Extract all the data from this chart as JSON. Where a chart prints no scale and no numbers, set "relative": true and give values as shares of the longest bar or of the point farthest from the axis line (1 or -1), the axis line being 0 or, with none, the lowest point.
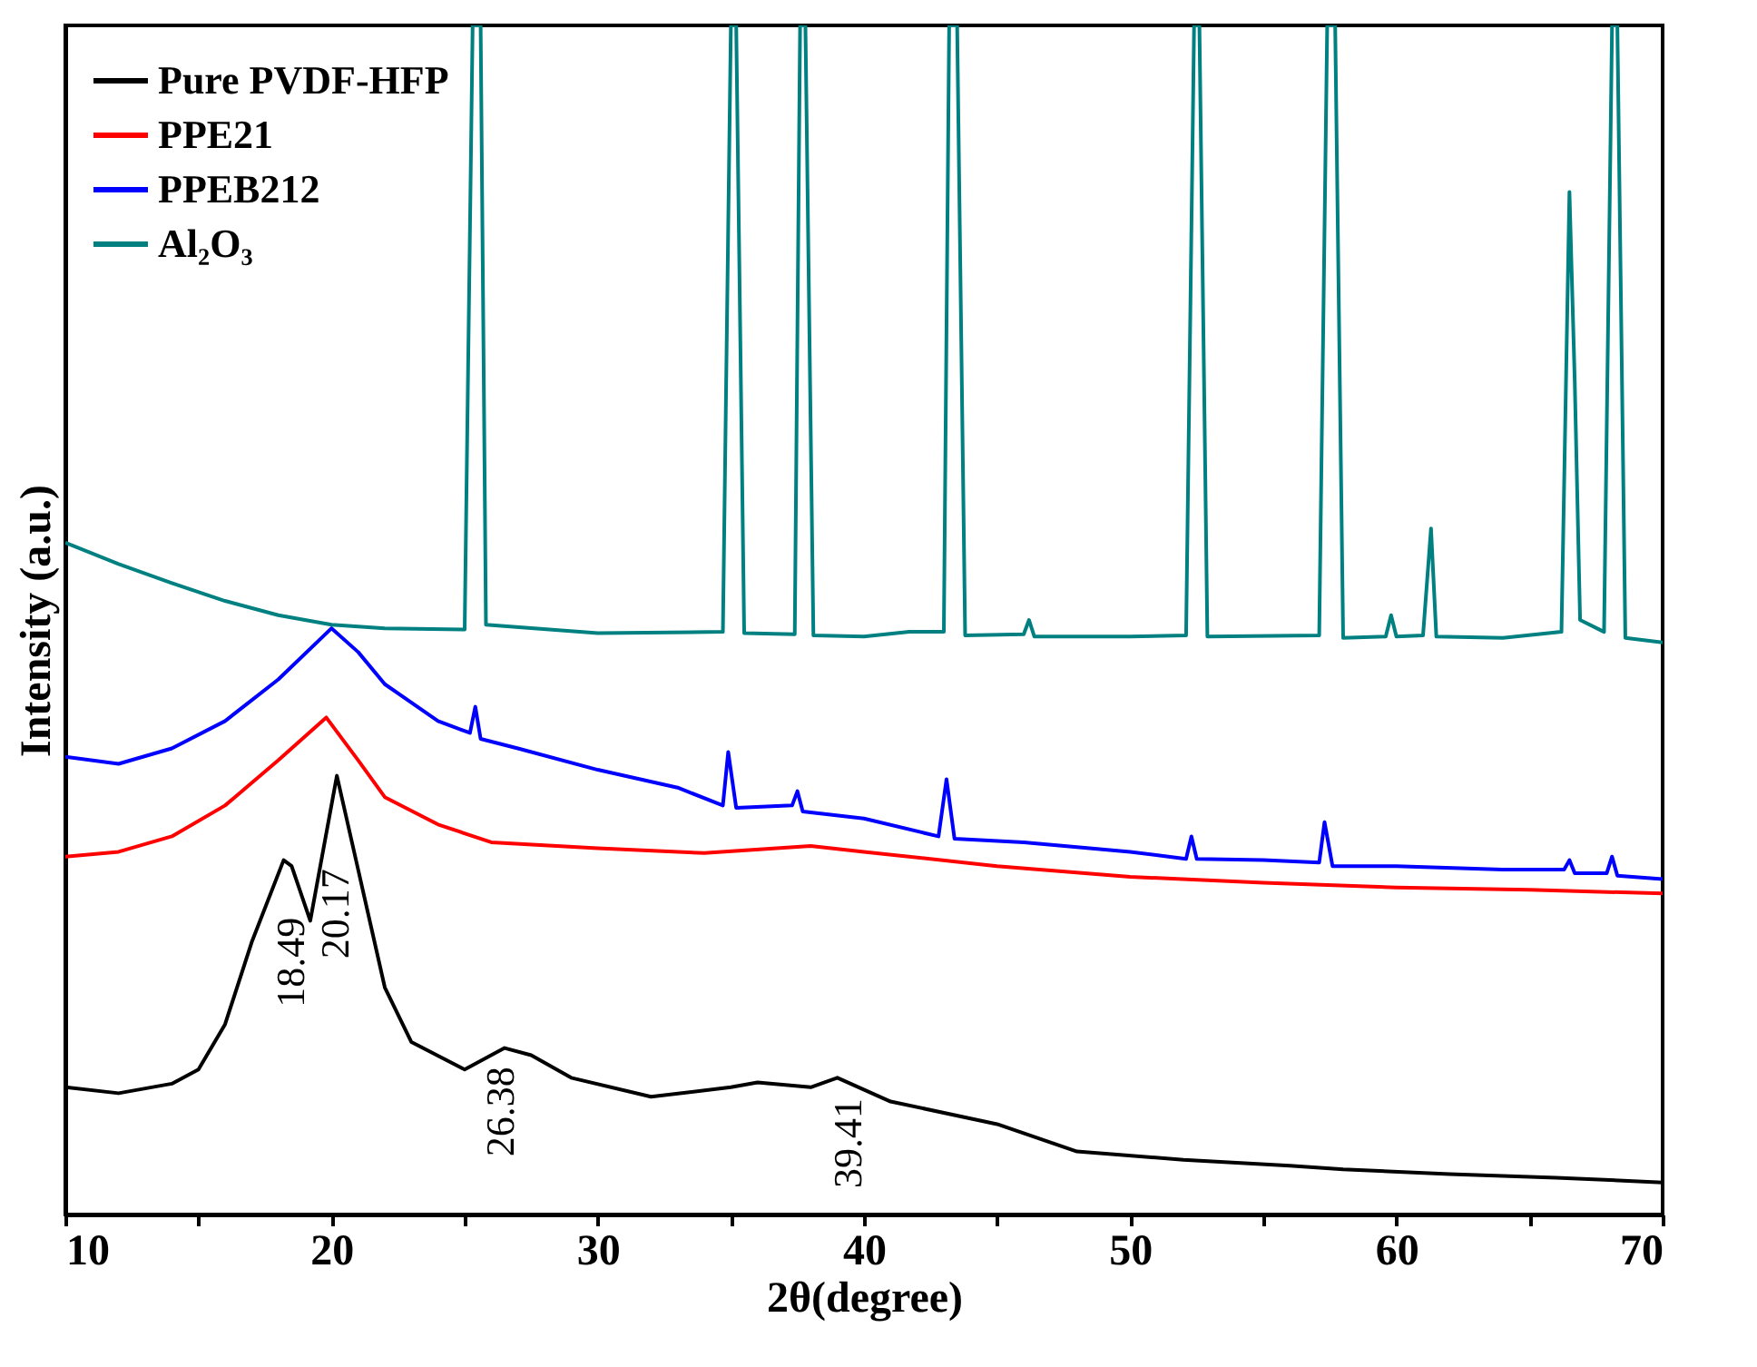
{
  "chart_data": {
    "type": "line",
    "xlabel": "2θ(degree)",
    "ylabel": "Intensity (a.u.)",
    "xlim": [
      10,
      70
    ],
    "xticks": [
      10,
      {
        "value": 15,
        "label": null
      },
      20,
      {
        "value": 25,
        "label": null
      },
      30,
      {
        "value": 35,
        "label": null
      },
      40,
      {
        "value": 45,
        "label": null
      },
      50,
      {
        "value": 55,
        "label": null
      },
      60,
      {
        "value": 65,
        "label": null
      },
      70
    ],
    "relative": true,
    "legend": "top left",
    "tick_labels": "x",
    "series": [
      {
        "name": "Pure PVDF-HFP",
        "color": "#000000",
        "x": [
          10,
          12,
          14,
          15,
          16,
          17,
          18.2,
          18.5,
          19.2,
          20.2,
          21,
          22,
          23,
          25,
          26.5,
          27.5,
          29,
          32,
          35,
          36,
          38,
          39,
          41,
          45,
          48,
          52,
          56,
          58,
          62,
          66,
          70
        ],
        "values": [
          0.107,
          0.102,
          0.11,
          0.122,
          0.16,
          0.229,
          0.298,
          0.293,
          0.247,
          0.369,
          0.29,
          0.191,
          0.145,
          0.122,
          0.14,
          0.134,
          0.115,
          0.099,
          0.107,
          0.111,
          0.107,
          0.115,
          0.095,
          0.076,
          0.053,
          0.046,
          0.041,
          0.038,
          0.034,
          0.031,
          0.027
        ]
      },
      {
        "name": "PPE21",
        "color": "#ff0000",
        "x": [
          10,
          12,
          14,
          16,
          18,
          19.8,
          21,
          22,
          24,
          26,
          30,
          34,
          38,
          40,
          45,
          50,
          55,
          60,
          65,
          70
        ],
        "values": [
          0.301,
          0.305,
          0.318,
          0.344,
          0.382,
          0.418,
          0.382,
          0.351,
          0.328,
          0.313,
          0.308,
          0.304,
          0.31,
          0.305,
          0.293,
          0.284,
          0.279,
          0.275,
          0.273,
          0.27
        ]
      },
      {
        "name": "PPEB212",
        "color": "#0000ff",
        "x": [
          10,
          12,
          14,
          16,
          18,
          20,
          21,
          22,
          24,
          25.2,
          25.4,
          25.6,
          27,
          30,
          33,
          34.7,
          34.9,
          35.2,
          37.3,
          37.5,
          37.7,
          40,
          42.8,
          43.1,
          43.4,
          46,
          50,
          52.1,
          52.3,
          52.5,
          55,
          57.1,
          57.3,
          57.6,
          60,
          64,
          66.3,
          66.5,
          66.7,
          67.9,
          68.1,
          68.3,
          70
        ],
        "values": [
          0.385,
          0.379,
          0.392,
          0.415,
          0.45,
          0.493,
          0.473,
          0.446,
          0.415,
          0.405,
          0.427,
          0.4,
          0.392,
          0.374,
          0.359,
          0.344,
          0.389,
          0.342,
          0.344,
          0.356,
          0.339,
          0.333,
          0.318,
          0.366,
          0.316,
          0.313,
          0.305,
          0.299,
          0.318,
          0.299,
          0.298,
          0.296,
          0.33,
          0.293,
          0.293,
          0.29,
          0.29,
          0.298,
          0.287,
          0.287,
          0.301,
          0.285,
          0.282
        ]
      },
      {
        "name": "Al₂O₃",
        "color": "#008080",
        "x": [
          10,
          12,
          14,
          16,
          18,
          20,
          22,
          25,
          25.3,
          25.4,
          25.6,
          25.8,
          30,
          34.7,
          35,
          35.2,
          35.5,
          37.4,
          37.6,
          37.8,
          38.1,
          40,
          41.7,
          43,
          43.2,
          43.5,
          43.8,
          46,
          46.2,
          46.4,
          50,
          52.1,
          52.4,
          52.6,
          52.9,
          57.1,
          57.4,
          57.7,
          58,
          59.6,
          59.8,
          60,
          61,
          61.3,
          61.5,
          64,
          66.2,
          66.5,
          66.7,
          66.9,
          67.8,
          68.1,
          68.3,
          68.6,
          70
        ],
        "values": [
          0.565,
          0.547,
          0.531,
          0.516,
          0.504,
          0.496,
          0.493,
          0.492,
          1,
          1,
          1,
          0.496,
          0.489,
          0.49,
          1,
          1,
          0.489,
          0.488,
          1,
          1,
          0.487,
          0.486,
          0.49,
          0.49,
          1,
          1,
          0.487,
          0.488,
          0.5,
          0.486,
          0.486,
          0.487,
          1,
          1,
          0.486,
          0.487,
          1,
          1,
          0.485,
          0.486,
          0.504,
          0.486,
          0.487,
          0.577,
          0.486,
          0.485,
          0.49,
          0.86,
          0.7,
          0.5,
          0.49,
          1,
          1,
          0.485,
          0.481
        ]
      }
    ],
    "annotations": [
      {
        "text": "18.49",
        "x": 18.49,
        "y": 0.29
      },
      {
        "text": "20.17",
        "x": 20.17,
        "y": 0.36
      },
      {
        "text": "26.38",
        "x": 26.38,
        "y": 0.14
      },
      {
        "text": "39.41",
        "x": 39.41,
        "y": 0.11
      }
    ]
  }
}
